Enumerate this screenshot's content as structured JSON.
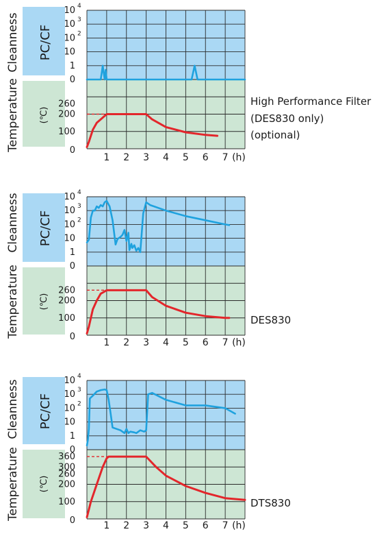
{
  "labels": {
    "cleanness": "Cleanness",
    "temperature": "Temperature",
    "pccf": "PC/CF",
    "celsius": "(℃)",
    "hours": "(h)"
  },
  "colors": {
    "cleanness_bg": "#aad8f4",
    "temperature_bg": "#cde6d4",
    "label_box_blue": "#aad8f4",
    "label_box_green": "#cde6d4",
    "cleanness_line": "#1fa2de",
    "temperature_line": "#e3262b",
    "grid": "#2a2a2a"
  },
  "captions": {
    "top": [
      "High Performance Filter",
      "(DES830 only)",
      "(optional)"
    ],
    "middle": [
      "DES830"
    ],
    "bottom": [
      "DTS830"
    ]
  },
  "chart_data": [
    {
      "id": "top",
      "type": "line",
      "x_ticks": [
        "1",
        "2",
        "3",
        "4",
        "5",
        "6",
        "7"
      ],
      "x_unit": "(h)",
      "cleanness_ticks": [
        {
          "base": "10",
          "exp": "4"
        },
        {
          "base": "10",
          "exp": "3"
        },
        {
          "base": "10",
          "exp": "2"
        },
        {
          "base": "10",
          "exp": ""
        },
        {
          "base": "1",
          "exp": ""
        },
        {
          "base": "0",
          "exp": ""
        }
      ],
      "temperature_ticks": [
        "260",
        "200",
        "100",
        "0"
      ],
      "cleanness_levels": {
        "0": 0,
        "1": 1,
        "10": 2,
        "10^2": 3,
        "10^3": 4,
        "10^4": 5
      },
      "temperature_scale": {
        "tick_values": [
          0,
          100,
          200,
          260
        ],
        "grid_max": 400
      },
      "cleanness_series": [
        [
          0,
          0
        ],
        [
          0.7,
          0
        ],
        [
          0.75,
          0.5
        ],
        [
          0.8,
          1.0
        ],
        [
          0.85,
          0.5
        ],
        [
          0.9,
          0
        ],
        [
          0.95,
          0.7
        ],
        [
          1.0,
          0
        ],
        [
          5.3,
          0
        ],
        [
          5.45,
          1.0
        ],
        [
          5.6,
          0
        ],
        [
          8,
          0
        ]
      ],
      "temperature_series": [
        [
          0,
          10
        ],
        [
          0.1,
          40
        ],
        [
          0.3,
          110
        ],
        [
          0.5,
          150
        ],
        [
          0.7,
          170
        ],
        [
          1.0,
          200
        ],
        [
          3.0,
          200
        ],
        [
          3.3,
          170
        ],
        [
          4.0,
          125
        ],
        [
          5.0,
          95
        ],
        [
          6.0,
          80
        ],
        [
          6.6,
          75
        ]
      ],
      "temperature_guide": {
        "y": 200,
        "x_start": 0,
        "x_end": 1.0
      }
    },
    {
      "id": "middle",
      "type": "line",
      "x_ticks": [
        "1",
        "2",
        "3",
        "4",
        "5",
        "6",
        "7"
      ],
      "x_unit": "(h)",
      "cleanness_ticks": [
        {
          "base": "10",
          "exp": "4"
        },
        {
          "base": "10",
          "exp": "3"
        },
        {
          "base": "10",
          "exp": "2"
        },
        {
          "base": "10",
          "exp": ""
        },
        {
          "base": "1",
          "exp": ""
        },
        {
          "base": "0",
          "exp": ""
        }
      ],
      "temperature_ticks": [
        "260",
        "200",
        "100",
        "0"
      ],
      "cleanness_levels": {
        "0": 0,
        "1": 1,
        "10": 2,
        "10^2": 3,
        "10^3": 4,
        "10^4": 5
      },
      "temperature_scale": {
        "tick_values": [
          0,
          100,
          200,
          260
        ],
        "grid_max": 400
      },
      "cleanness_series": [
        [
          0,
          1.7
        ],
        [
          0.1,
          1.9
        ],
        [
          0.2,
          3.5
        ],
        [
          0.3,
          4.0
        ],
        [
          0.4,
          4.0
        ],
        [
          0.5,
          4.3
        ],
        [
          0.6,
          4.2
        ],
        [
          0.7,
          4.4
        ],
        [
          0.8,
          4.3
        ],
        [
          0.9,
          4.6
        ],
        [
          1.0,
          4.7
        ],
        [
          1.15,
          4.3
        ],
        [
          1.3,
          3.3
        ],
        [
          1.45,
          1.55
        ],
        [
          1.55,
          1.95
        ],
        [
          1.7,
          2.1
        ],
        [
          1.8,
          2.25
        ],
        [
          1.9,
          2.6
        ],
        [
          2.0,
          1.8
        ],
        [
          2.1,
          2.4
        ],
        [
          2.15,
          1.15
        ],
        [
          2.25,
          1.6
        ],
        [
          2.3,
          1.3
        ],
        [
          2.4,
          1.5
        ],
        [
          2.5,
          1.1
        ],
        [
          2.6,
          1.3
        ],
        [
          2.7,
          1.0
        ],
        [
          2.85,
          3.8
        ],
        [
          3.0,
          4.6
        ],
        [
          3.2,
          4.4
        ],
        [
          4.0,
          4.0
        ],
        [
          5.0,
          3.6
        ],
        [
          6.0,
          3.3
        ],
        [
          7.0,
          3.0
        ],
        [
          7.2,
          2.95
        ]
      ],
      "temperature_series": [
        [
          0,
          10
        ],
        [
          0.1,
          50
        ],
        [
          0.3,
          150
        ],
        [
          0.5,
          200
        ],
        [
          0.7,
          240
        ],
        [
          1.0,
          260
        ],
        [
          3.0,
          260
        ],
        [
          3.3,
          220
        ],
        [
          4.0,
          170
        ],
        [
          5.0,
          130
        ],
        [
          6.0,
          110
        ],
        [
          7.0,
          100
        ],
        [
          7.2,
          100
        ]
      ],
      "temperature_guide": {
        "y": 260,
        "x_start": 0,
        "x_end": 1.0
      }
    },
    {
      "id": "bottom",
      "type": "line",
      "x_ticks": [
        "1",
        "2",
        "3",
        "4",
        "5",
        "6",
        "7"
      ],
      "x_unit": "(h)",
      "cleanness_ticks": [
        {
          "base": "10",
          "exp": "4"
        },
        {
          "base": "10",
          "exp": "3"
        },
        {
          "base": "10",
          "exp": "2"
        },
        {
          "base": "10",
          "exp": ""
        },
        {
          "base": "1",
          "exp": ""
        },
        {
          "base": "0",
          "exp": ""
        }
      ],
      "temperature_ticks": [
        "360",
        "300",
        "260",
        "200",
        "100",
        "0"
      ],
      "cleanness_levels": {
        "0": 0,
        "1": 1,
        "10": 2,
        "10^2": 3,
        "10^3": 4,
        "10^4": 5
      },
      "temperature_scale": {
        "tick_values": [
          0,
          100,
          200,
          260,
          300,
          360
        ],
        "grid_max": 400
      },
      "cleanness_series": [
        [
          0,
          0.3
        ],
        [
          0.05,
          0.7
        ],
        [
          0.1,
          1.5
        ],
        [
          0.15,
          3.7
        ],
        [
          0.3,
          3.9
        ],
        [
          0.5,
          4.2
        ],
        [
          0.7,
          4.3
        ],
        [
          0.9,
          4.35
        ],
        [
          1.0,
          4.3
        ],
        [
          1.1,
          3.6
        ],
        [
          1.2,
          2.6
        ],
        [
          1.3,
          1.6
        ],
        [
          1.5,
          1.5
        ],
        [
          1.7,
          1.4
        ],
        [
          1.9,
          1.2
        ],
        [
          2.0,
          1.5
        ],
        [
          2.1,
          1.2
        ],
        [
          2.2,
          1.3
        ],
        [
          2.4,
          1.25
        ],
        [
          2.5,
          1.2
        ],
        [
          2.7,
          1.4
        ],
        [
          2.9,
          1.3
        ],
        [
          3.0,
          1.4
        ],
        [
          3.1,
          4.0
        ],
        [
          3.3,
          4.1
        ],
        [
          4.0,
          3.6
        ],
        [
          5.0,
          3.2
        ],
        [
          6.0,
          3.2
        ],
        [
          7.0,
          3.0
        ],
        [
          7.5,
          2.6
        ]
      ],
      "temperature_series": [
        [
          0,
          10
        ],
        [
          0.2,
          100
        ],
        [
          0.5,
          200
        ],
        [
          0.8,
          300
        ],
        [
          1.0,
          350
        ],
        [
          1.1,
          360
        ],
        [
          3.0,
          360
        ],
        [
          3.5,
          300
        ],
        [
          4.0,
          250
        ],
        [
          5.0,
          190
        ],
        [
          6.0,
          150
        ],
        [
          7.0,
          120
        ],
        [
          8.0,
          110
        ]
      ],
      "temperature_guide": {
        "y": 360,
        "x_start": 0,
        "x_end": 1.1
      }
    }
  ]
}
